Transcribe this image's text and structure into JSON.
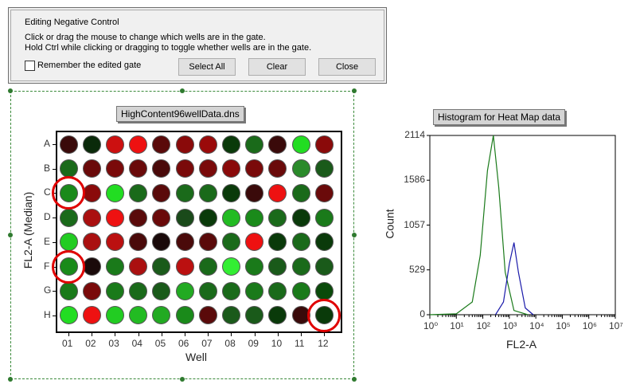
{
  "dialog": {
    "title": "Editing Negative Control",
    "instruction_1": "Click or drag the mouse to change which wells are in the gate.",
    "instruction_2": "Hold Ctrl while clicking or dragging to toggle whether wells are in the gate.",
    "remember_label": "Remember the edited gate",
    "remember_checked": false,
    "select_all_label": "Select All",
    "clear_label": "Clear",
    "close_label": "Close"
  },
  "plate": {
    "title": "HighContent96wellData.dns",
    "x_axis_label": "Well",
    "y_axis_label": "FL2-A (Median)",
    "rows": [
      "A",
      "B",
      "C",
      "D",
      "E",
      "F",
      "G",
      "H"
    ],
    "columns": [
      "01",
      "02",
      "03",
      "04",
      "05",
      "06",
      "07",
      "08",
      "09",
      "10",
      "11",
      "12"
    ],
    "wells": [
      [
        "#3a0a0a",
        "#0a2a0a",
        "#cc1010",
        "#ee1111",
        "#5a0a0a",
        "#8a0a0a",
        "#9a0a0a",
        "#0a3a0a",
        "#1a6a1a",
        "#3a0a0a",
        "#22dd22",
        "#8a0a0a"
      ],
      [
        "#1a6a1a",
        "#6a0a0a",
        "#7a0a0a",
        "#6a0a0a",
        "#4a0a0a",
        "#7a0a0a",
        "#7a0a0a",
        "#8a0a0a",
        "#7a0a0a",
        "#6a0a0a",
        "#2a8a2a",
        "#1a5a1a"
      ],
      [
        "#1a8a1a",
        "#8a0a0a",
        "#22dd22",
        "#1a6a1a",
        "#5a0a0a",
        "#1a6a1a",
        "#1a6a1a",
        "#0a3a0a",
        "#3a0a0a",
        "#ee1111",
        "#1a6a1a",
        "#6a0a0a"
      ],
      [
        "#1a6a1a",
        "#aa1010",
        "#ee1111",
        "#5a0a0a",
        "#6a0a0a",
        "#1a4a1a",
        "#0a3a0a",
        "#22bb22",
        "#1a8a1a",
        "#1a6a1a",
        "#0a3a0a",
        "#1a7a1a"
      ],
      [
        "#22cc22",
        "#aa1010",
        "#bb1010",
        "#4a0a0a",
        "#1a0a0a",
        "#4a0a0a",
        "#5a0a0a",
        "#1a6a1a",
        "#ee1111",
        "#0a3a0a",
        "#1a6a1a",
        "#0a3a0a"
      ],
      [
        "#1a8a1a",
        "#1a0a0a",
        "#1a7a1a",
        "#aa1010",
        "#1a5a1a",
        "#bb1010",
        "#1a6a1a",
        "#33ee33",
        "#1a7a1a",
        "#1a5a1a",
        "#1a6a1a",
        "#1a5a1a"
      ],
      [
        "#1a7a1a",
        "#7a0a0a",
        "#1a7a1a",
        "#1a6a1a",
        "#1a5a1a",
        "#22aa22",
        "#1a6a1a",
        "#1a6a1a",
        "#1a7a1a",
        "#1a6a1a",
        "#1a7a1a",
        "#0a4a0a"
      ],
      [
        "#22dd22",
        "#ee1111",
        "#22cc22",
        "#22bb22",
        "#22aa22",
        "#1a8a1a",
        "#5a0a0a",
        "#1a5a1a",
        "#1a5a1a",
        "#0a3a0a",
        "#3a0a0a",
        "#0a3a0a"
      ]
    ],
    "highlighted": [
      [
        2,
        0
      ],
      [
        5,
        0
      ],
      [
        7,
        11
      ]
    ]
  },
  "histogram": {
    "title": "Histogram for Heat Map data",
    "x_axis_label": "FL2-A",
    "y_axis_label": "Count",
    "y_ticks": [
      "0",
      "529",
      "1057",
      "1586",
      "2114"
    ],
    "x_ticks": [
      "10⁰",
      "10¹",
      "10²",
      "10³",
      "10⁴",
      "10⁵",
      "10⁶",
      "10⁷"
    ],
    "series_colors": {
      "green": "#1a7a1a",
      "blue": "#1a1aaa"
    }
  },
  "chart_data": {
    "type": "line",
    "title": "Histogram for Heat Map data",
    "xlabel": "FL2-A",
    "ylabel": "Count",
    "x_scale": "log10",
    "xlim": [
      1,
      10000000
    ],
    "ylim": [
      0,
      2114
    ],
    "series": [
      {
        "name": "green",
        "x": [
          1,
          10,
          40,
          80,
          150,
          250,
          400,
          700,
          1500,
          5000
        ],
        "y": [
          0,
          10,
          150,
          700,
          1700,
          2114,
          1500,
          500,
          50,
          0
        ]
      },
      {
        "name": "blue",
        "x": [
          300,
          600,
          1000,
          1500,
          2200,
          4000,
          8000
        ],
        "y": [
          0,
          150,
          600,
          850,
          500,
          80,
          0
        ]
      }
    ]
  }
}
